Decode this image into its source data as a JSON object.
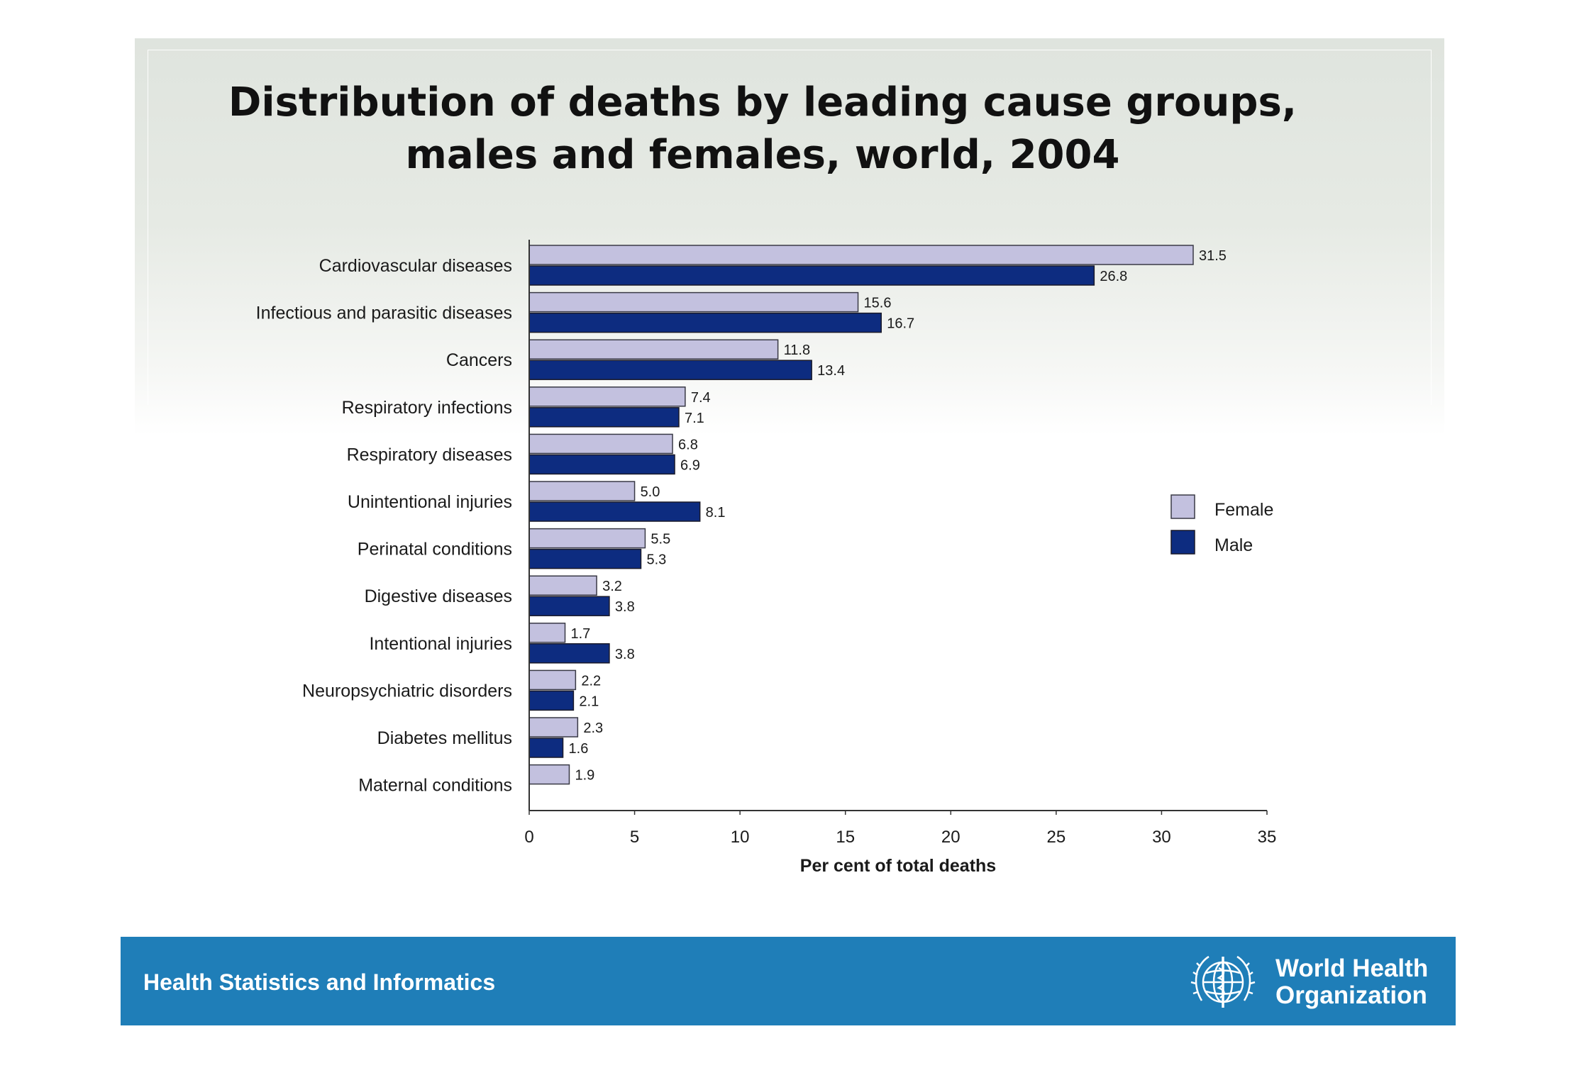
{
  "title_line1": "Distribution of deaths by leading cause groups,",
  "title_line2": "males and females, world, 2004",
  "chart_data": {
    "type": "bar",
    "orientation": "horizontal",
    "categories": [
      "Cardiovascular diseases",
      "Infectious and parasitic diseases",
      "Cancers",
      "Respiratory infections",
      "Respiratory diseases",
      "Unintentional injuries",
      "Perinatal conditions",
      "Digestive diseases",
      "Intentional injuries",
      "Neuropsychiatric disorders",
      "Diabetes mellitus",
      "Maternal conditions"
    ],
    "series": [
      {
        "name": "Female",
        "color": "#c3c1df",
        "values": [
          31.5,
          15.6,
          11.8,
          7.4,
          6.8,
          5.0,
          5.5,
          3.2,
          1.7,
          2.2,
          2.3,
          1.9
        ]
      },
      {
        "name": "Male",
        "color": "#0d2c80",
        "values": [
          26.8,
          16.7,
          13.4,
          7.1,
          6.9,
          8.1,
          5.3,
          3.8,
          3.8,
          2.1,
          1.6,
          null
        ]
      }
    ],
    "value_labels": {
      "Female": [
        "31.5",
        "15.6",
        "11.8",
        "7.4",
        "6.8",
        "5.0",
        "5.5",
        "3.2",
        "1.7",
        "2.2",
        "2.3",
        "1.9"
      ],
      "Male": [
        "26.8",
        "16.7",
        "13.4",
        "7.1",
        "6.9",
        "8.1",
        "5.3",
        "3.8",
        "3.8",
        "2.1",
        "1.6",
        ""
      ]
    },
    "xlabel": "Per cent of total deaths",
    "xlim": [
      0,
      35
    ],
    "xticks": [
      0,
      5,
      10,
      15,
      20,
      25,
      30,
      35
    ],
    "legend": "right",
    "grid": false
  },
  "footer": {
    "left_text": "Health Statistics and Informatics",
    "org_line1": "World Health",
    "org_line2": "Organization",
    "logo_icon": "who-emblem-icon"
  }
}
